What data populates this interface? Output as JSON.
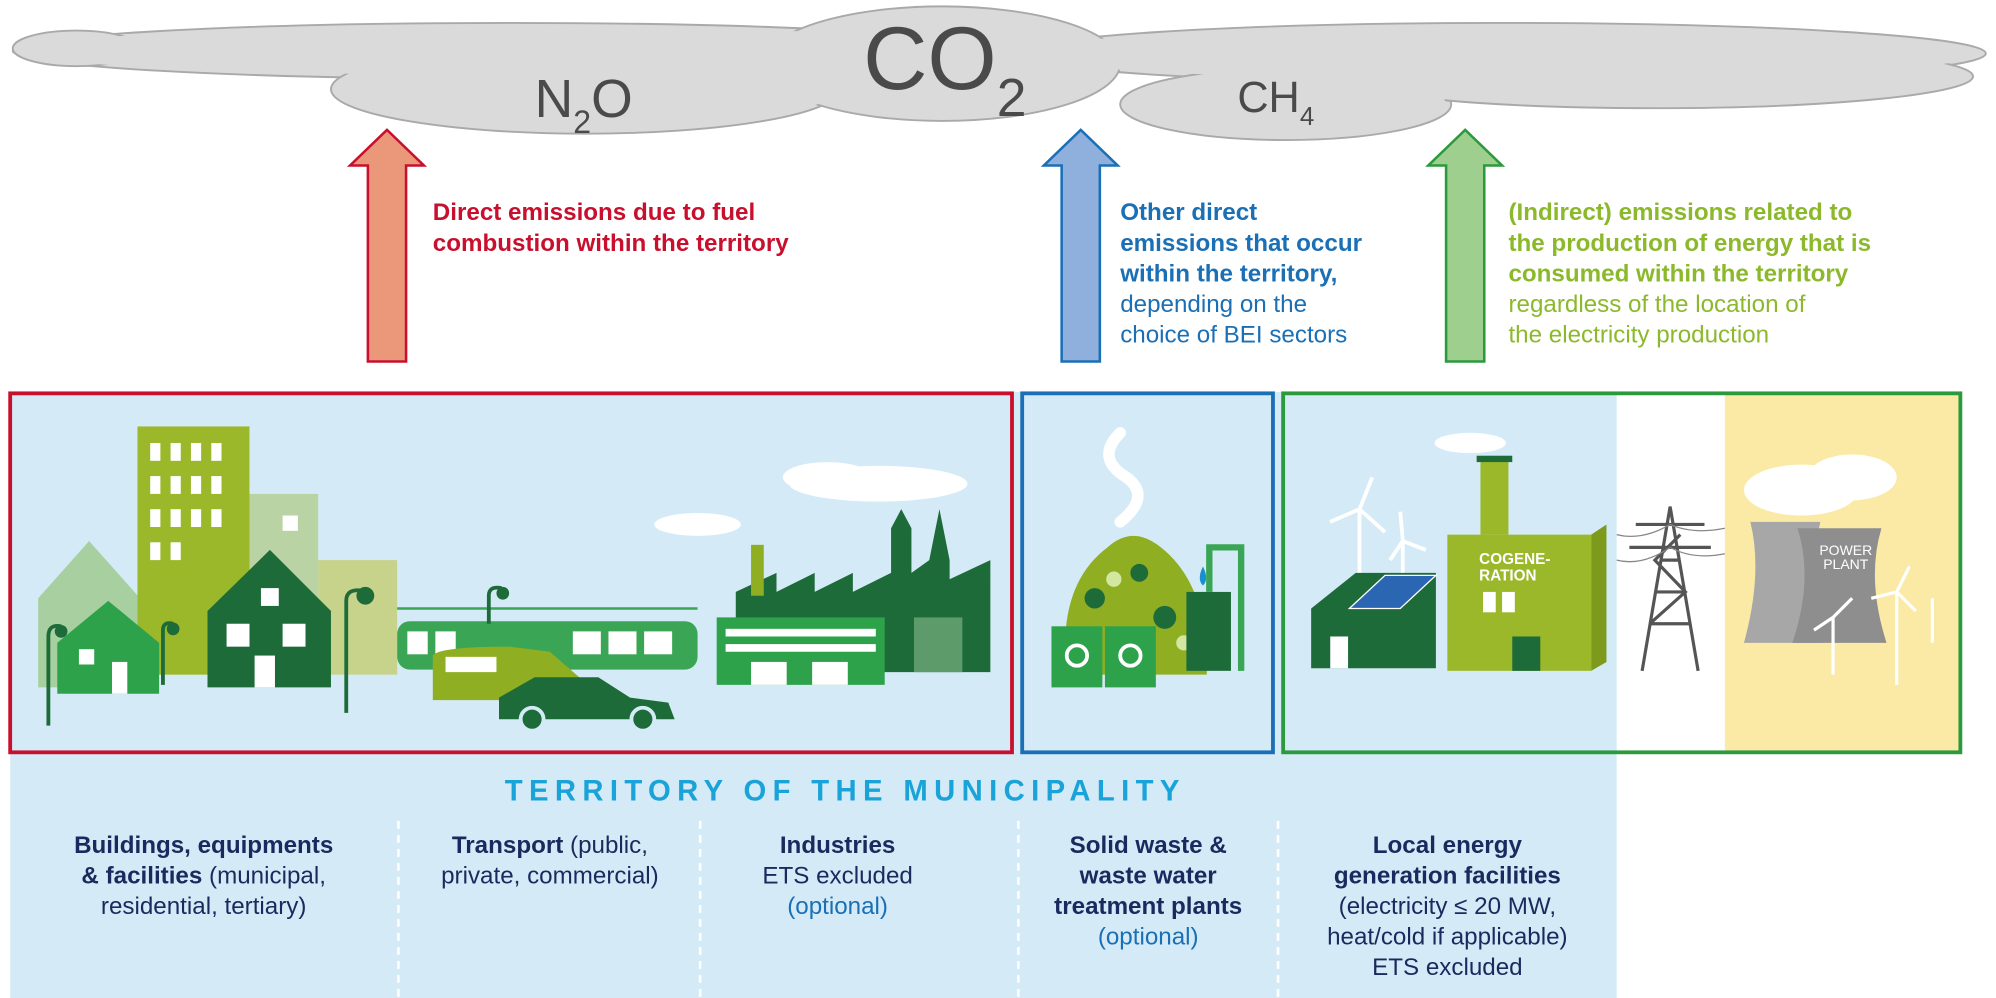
{
  "gases": [
    [
      "N",
      "2",
      "O"
    ],
    [
      "CO",
      "2"
    ],
    [
      "CH",
      "4"
    ]
  ],
  "emissions": [
    {
      "bold": [
        "Direct emissions due to fuel",
        "combustion within the territory"
      ]
    },
    {
      "bold": [
        "Other direct",
        "emissions that occur",
        "within the territory,"
      ],
      "regular": [
        "depending on the",
        "choice of BEI sectors"
      ]
    },
    {
      "bold": [
        "(Indirect) emissions related to",
        "the production of energy that is",
        "consumed within the territory"
      ],
      "regular": [
        "regardless of the location of",
        "the electricity production"
      ]
    }
  ],
  "illustrations": {
    "cogeneration": [
      "COGENE-",
      "RATION"
    ],
    "power_plant": [
      "POWER",
      "PLANT"
    ]
  },
  "territory_title": "TERRITORY OF THE MUNICIPALITY",
  "sectors": [
    {
      "lines": [
        [
          {
            "text": "Buildings, equipments",
            "style": "bold"
          }
        ],
        [
          {
            "text": "& facilities",
            "style": "bold"
          },
          {
            "text": " (municipal,",
            "style": "regular"
          }
        ],
        [
          {
            "text": "residential, tertiary)",
            "style": "regular"
          }
        ]
      ]
    },
    {
      "lines": [
        [
          {
            "text": "Transport",
            "style": "bold"
          },
          {
            "text": " (public,",
            "style": "regular"
          }
        ],
        [
          {
            "text": "private, commercial)",
            "style": "regular"
          }
        ]
      ]
    },
    {
      "lines": [
        [
          {
            "text": "Industries",
            "style": "bold"
          }
        ],
        [
          {
            "text": "ETS excluded",
            "style": "regular"
          }
        ],
        [
          {
            "text": "(optional)",
            "style": "optional"
          }
        ]
      ]
    },
    {
      "lines": [
        [
          {
            "text": "Solid waste &",
            "style": "bold"
          }
        ],
        [
          {
            "text": "waste water",
            "style": "bold"
          }
        ],
        [
          {
            "text": "treatment plants",
            "style": "bold"
          }
        ],
        [
          {
            "text": "(optional)",
            "style": "optional"
          }
        ]
      ]
    },
    {
      "lines": [
        [
          {
            "text": "Local energy",
            "style": "bold"
          }
        ],
        [
          {
            "text": "generation facilities",
            "style": "bold"
          }
        ],
        [
          {
            "text": "(electricity ≤ 20 MW,",
            "style": "regular"
          }
        ],
        [
          {
            "text": "heat/cold if applicable)",
            "style": "regular"
          }
        ],
        [
          {
            "text": "ETS excluded",
            "style": "regular"
          }
        ]
      ]
    }
  ]
}
